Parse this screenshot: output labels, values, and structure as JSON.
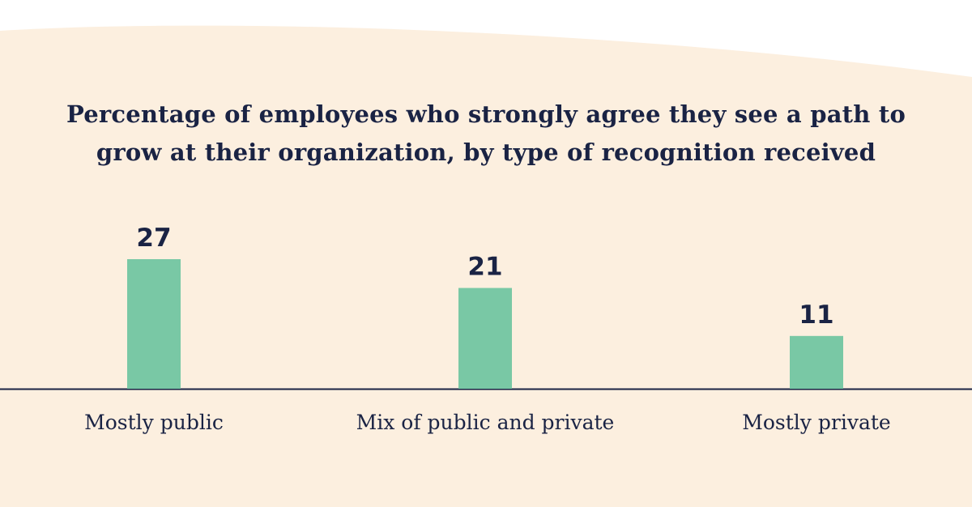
{
  "colors": {
    "background": "#fcefdf",
    "bar": "#79c8a5",
    "text": "#1a2344"
  },
  "chart_data": {
    "type": "bar",
    "title": "Percentage of employees who strongly agree they see a path to grow at their organization, by type of recognition received",
    "categories": [
      "Mostly public",
      "Mix of public and private",
      "Mostly private"
    ],
    "values": [
      27,
      21,
      11
    ],
    "xlabel": "",
    "ylabel": "",
    "ylim": [
      0,
      27
    ],
    "grid": false,
    "legend": "none",
    "data_labels": true
  }
}
